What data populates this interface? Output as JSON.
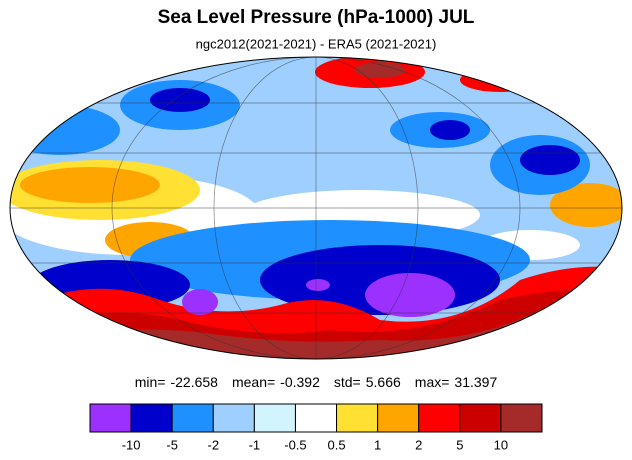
{
  "title": "Sea Level Pressure (hPa-1000) JUL",
  "subtitle": "ngc2012(2021-2021) - ERA5 (2021-2021)",
  "stats": [
    {
      "label": "min=",
      "value": -22.658
    },
    {
      "label": "mean=",
      "value": -0.392
    },
    {
      "label": "std=",
      "value": 5.666
    },
    {
      "label": "max=",
      "value": 31.397
    }
  ],
  "colorbar": {
    "colors": [
      "#9b30ff",
      "#0000cd",
      "#1e90ff",
      "#9fcfff",
      "#d2f4ff",
      "#ffffff",
      "#ffe033",
      "#ffa500",
      "#ff0000",
      "#cd0000",
      "#a52a2a"
    ],
    "ticks": [
      -10,
      -5,
      -2,
      -1,
      -0.5,
      0.5,
      1,
      2,
      5,
      10
    ]
  }
}
